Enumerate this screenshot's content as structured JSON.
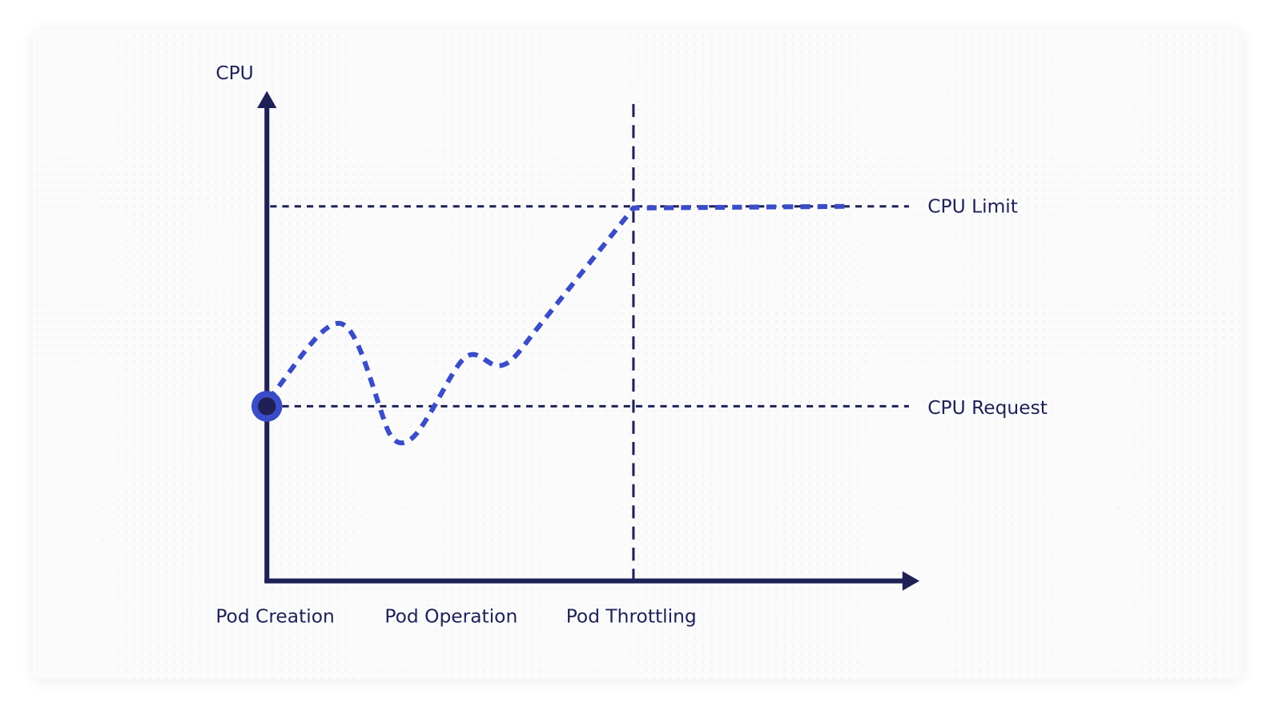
{
  "axis": {
    "y_label": "CPU"
  },
  "levels": {
    "limit": "CPU Limit",
    "request": "CPU Request"
  },
  "phases": [
    "Pod Creation",
    "Pod Operation",
    "Pod Throttling"
  ]
}
